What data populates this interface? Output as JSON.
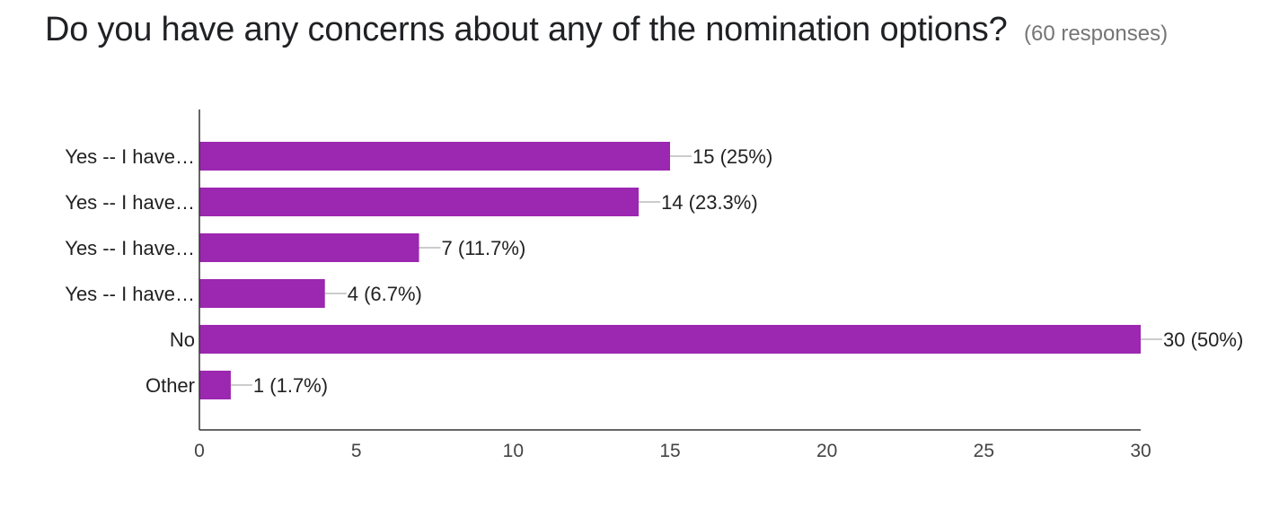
{
  "header": {
    "title": "Do you have any concerns about any of the nomination options?",
    "responses": "(60 responses)"
  },
  "colors": {
    "bar": "#9c27b0",
    "axis": "#333333",
    "leader": "#999999"
  },
  "chart_data": {
    "type": "bar",
    "orientation": "horizontal",
    "title": "Do you have any concerns about any of the nomination options?",
    "total_responses": 60,
    "categories": [
      "Yes -- I have…",
      "Yes -- I have…",
      "Yes -- I have…",
      "Yes -- I have…",
      "No",
      "Other"
    ],
    "values": [
      15,
      14,
      7,
      4,
      30,
      1
    ],
    "data_labels": [
      "15 (25%)",
      "14 (23.3%)",
      "7 (11.7%)",
      "4 (6.7%)",
      "30 (50%)",
      "1 (1.7%)"
    ],
    "xlim": [
      0,
      30
    ],
    "xticks": [
      0,
      5,
      10,
      15,
      20,
      25,
      30
    ],
    "grid": false,
    "legend": "none"
  }
}
